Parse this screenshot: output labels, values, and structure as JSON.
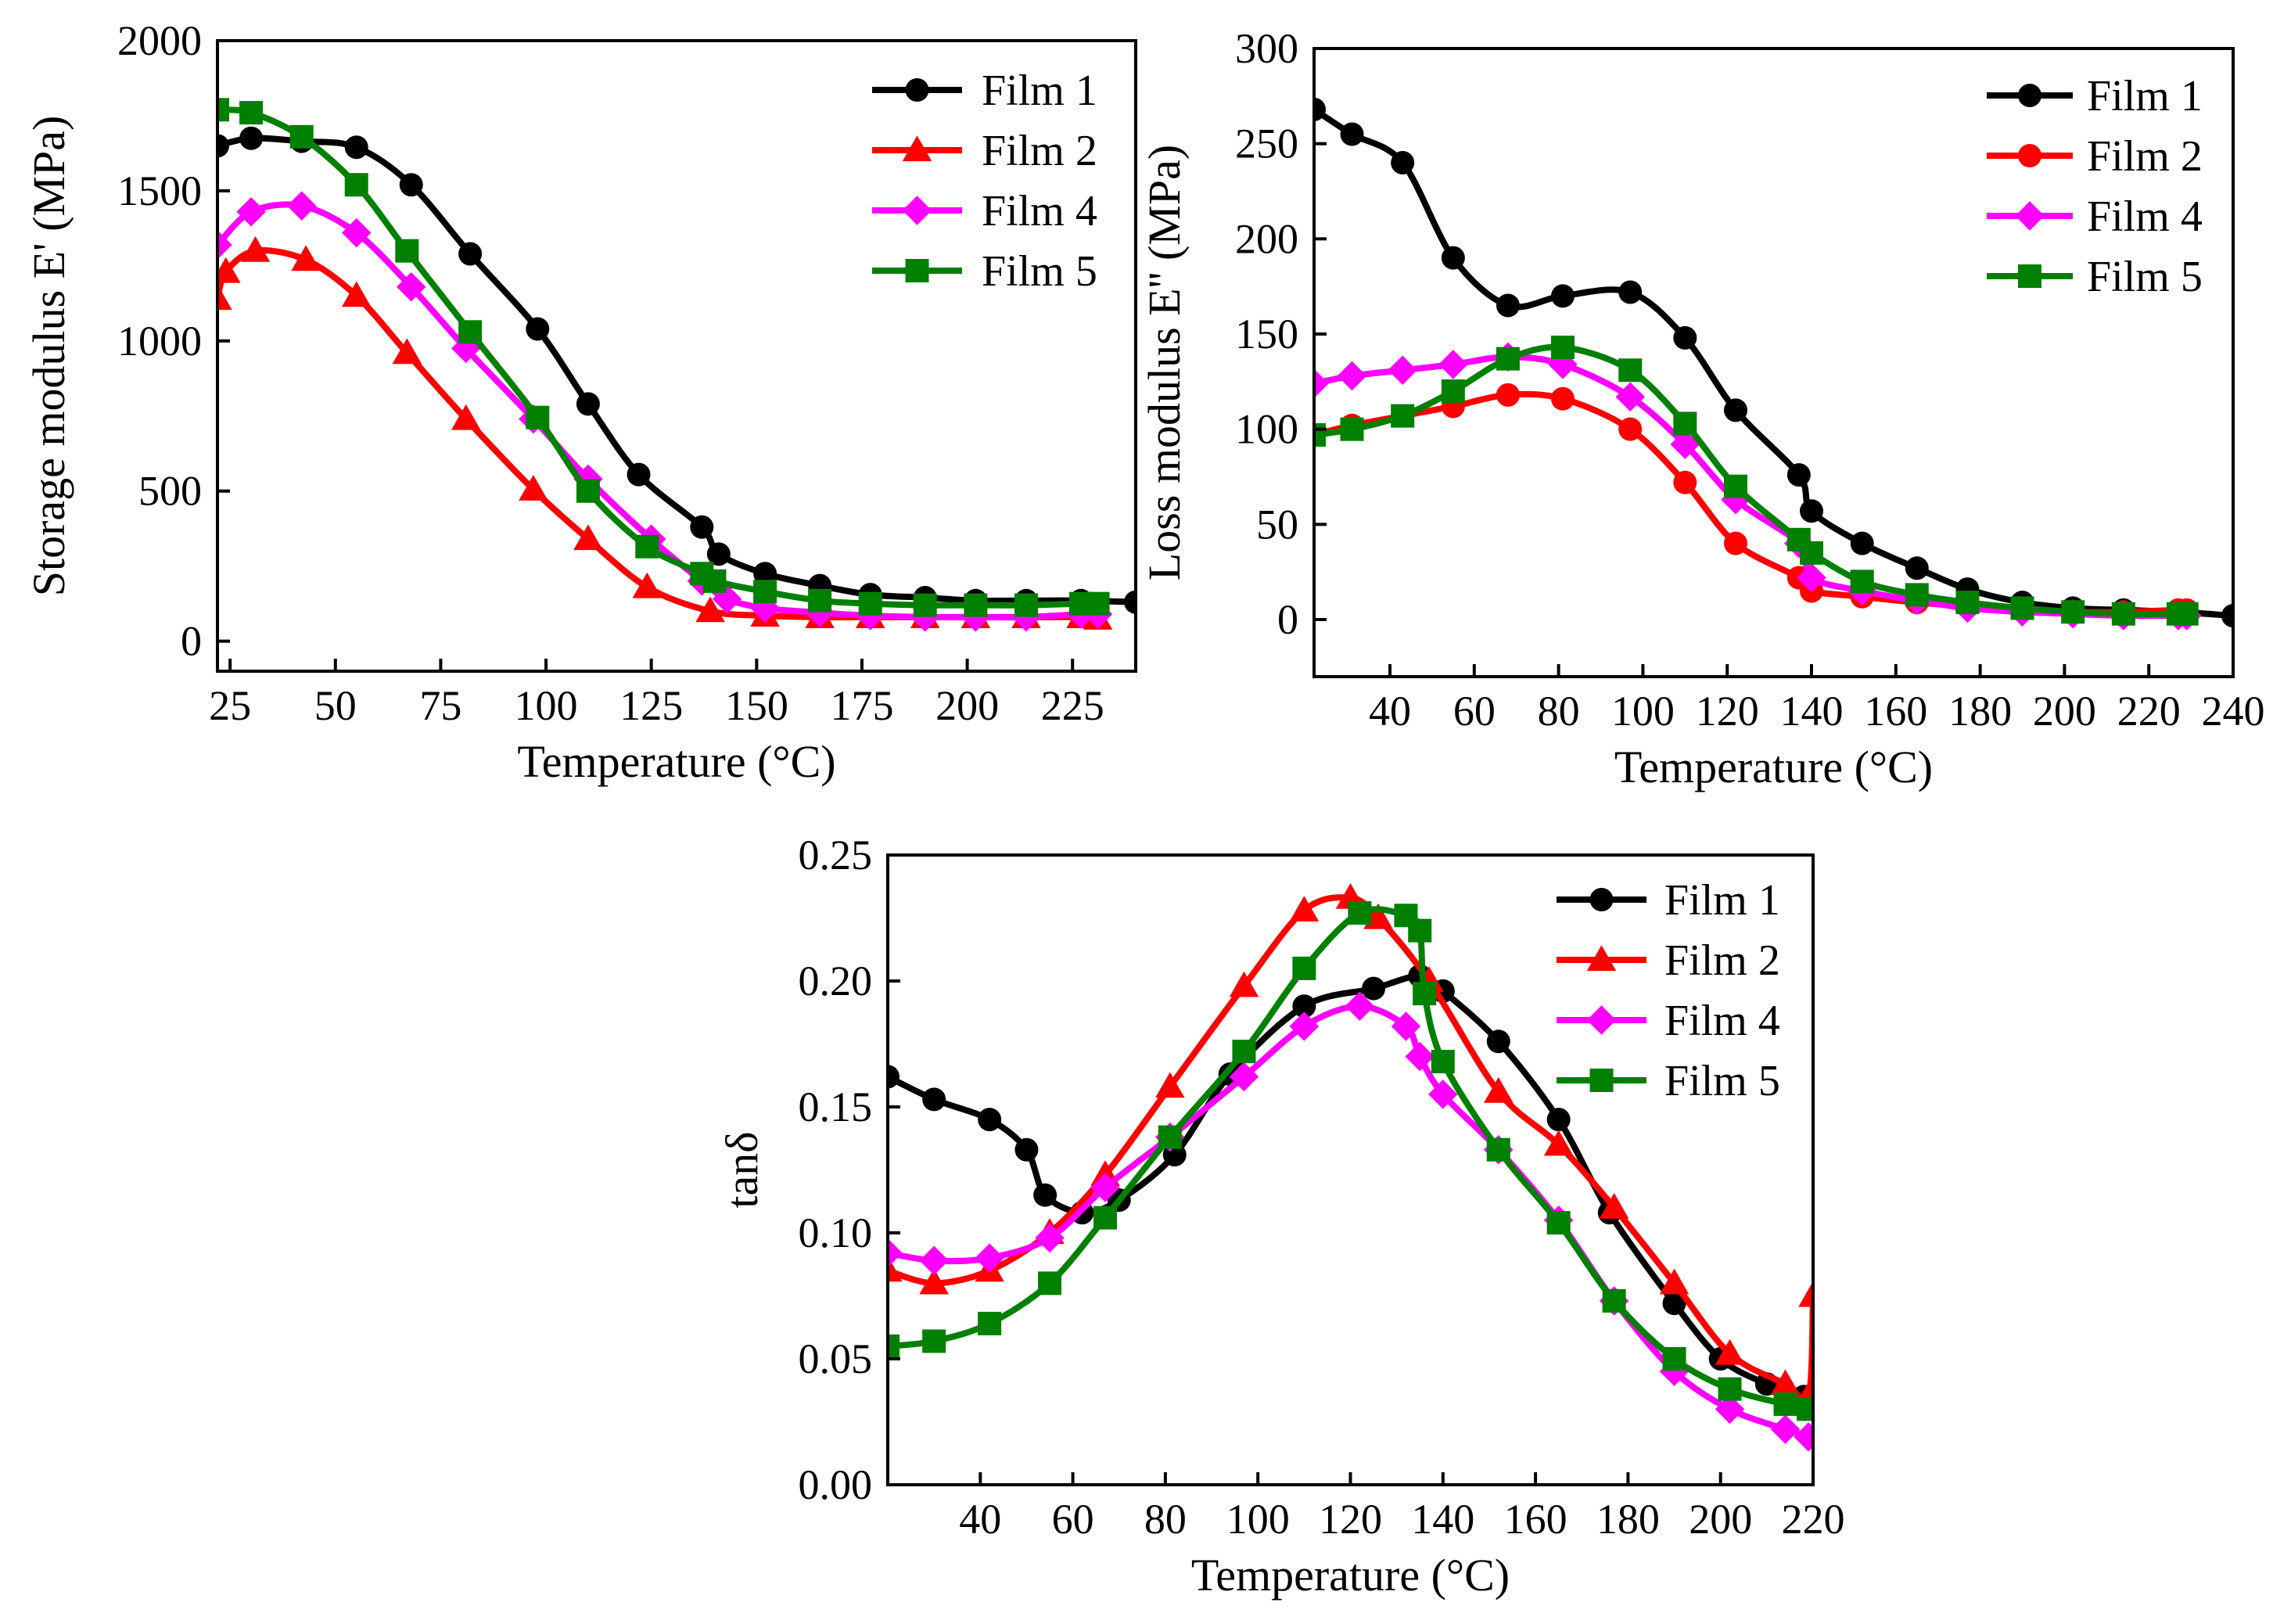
{
  "chart_data": [
    {
      "id": "storage",
      "type": "line",
      "title": "",
      "xlabel": "Temperature (°C)",
      "ylabel": "Storage modulus E' (MPa)",
      "xlim": [
        22,
        240
      ],
      "ylim": [
        -100,
        2000
      ],
      "xticks": [
        25,
        50,
        75,
        100,
        125,
        150,
        175,
        200,
        225
      ],
      "xtick_labels": [
        "25",
        "50",
        "75",
        "100",
        "125",
        "150",
        "175",
        "200",
        "225"
      ],
      "yticks": [
        0,
        500,
        1000,
        1500,
        2000
      ],
      "ytick_labels": [
        "0",
        "500",
        "1000",
        "1500",
        "2000"
      ],
      "legend_position": "top-right",
      "series": [
        {
          "name": "Film 1",
          "color": "#000000",
          "marker": "circle",
          "x": [
            22,
            30,
            42,
            55,
            68,
            82,
            98,
            110,
            122,
            137,
            141,
            152,
            165,
            177,
            190,
            202,
            214,
            227,
            240
          ],
          "y": [
            1650,
            1675,
            1665,
            1645,
            1520,
            1290,
            1040,
            790,
            555,
            380,
            290,
            225,
            185,
            155,
            145,
            135,
            135,
            135,
            130
          ]
        },
        {
          "name": "Film 2",
          "color": "#ff0000",
          "marker": "triangle",
          "x": [
            22,
            24,
            31,
            43,
            55,
            67,
            81,
            97,
            110,
            124,
            139,
            152,
            165,
            177,
            190,
            202,
            214,
            227,
            231
          ],
          "y": [
            1140,
            1230,
            1300,
            1270,
            1150,
            960,
            740,
            505,
            340,
            180,
            100,
            85,
            80,
            80,
            80,
            80,
            80,
            80,
            75
          ]
        },
        {
          "name": "Film 4",
          "color": "#ff00ff",
          "marker": "diamond",
          "x": [
            22,
            30,
            42,
            55,
            68,
            81,
            97,
            110,
            125,
            137,
            143,
            152,
            165,
            177,
            190,
            202,
            214,
            227,
            231
          ],
          "y": [
            1320,
            1430,
            1450,
            1360,
            1180,
            975,
            740,
            540,
            340,
            200,
            140,
            110,
            95,
            85,
            80,
            80,
            80,
            90,
            90
          ]
        },
        {
          "name": "Film 5",
          "color": "#008000",
          "marker": "square",
          "x": [
            22,
            30,
            42,
            55,
            67,
            82,
            98,
            110,
            124,
            137,
            140,
            152,
            165,
            177,
            190,
            202,
            214,
            227,
            231
          ],
          "y": [
            1770,
            1760,
            1680,
            1520,
            1300,
            1030,
            745,
            500,
            315,
            225,
            200,
            165,
            135,
            125,
            120,
            120,
            120,
            125,
            125
          ]
        }
      ]
    },
    {
      "id": "loss",
      "type": "line",
      "title": "",
      "xlabel": "Temperature (°C)",
      "ylabel": "Loss modulus E'' (MPa)",
      "xlim": [
        22,
        240
      ],
      "ylim": [
        -30,
        300
      ],
      "xticks": [
        40,
        60,
        80,
        100,
        120,
        140,
        160,
        180,
        200,
        220,
        240
      ],
      "xtick_labels": [
        "40",
        "60",
        "80",
        "100",
        "120",
        "140",
        "160",
        "180",
        "200",
        "220",
        "240"
      ],
      "yticks": [
        0,
        50,
        100,
        150,
        200,
        250,
        300
      ],
      "ytick_labels": [
        "0",
        "50",
        "100",
        "150",
        "200",
        "250",
        "300"
      ],
      "legend_position": "top-right",
      "series": [
        {
          "name": "Film 1",
          "color": "#000000",
          "marker": "circle",
          "x": [
            22,
            31,
            43,
            55,
            68,
            81,
            97,
            110,
            122,
            137,
            140,
            152,
            165,
            177,
            190,
            202,
            214,
            227,
            240
          ],
          "y": [
            268,
            255,
            240,
            190,
            165,
            170,
            172,
            148,
            110,
            76,
            57,
            40,
            27,
            16,
            9,
            6,
            5,
            4,
            2
          ]
        },
        {
          "name": "Film 2",
          "color": "#ff0000",
          "marker": "circle",
          "x": [
            22,
            31,
            43,
            55,
            68,
            81,
            97,
            110,
            122,
            137,
            140,
            152,
            165,
            177,
            190,
            202,
            214,
            227,
            229
          ],
          "y": [
            97,
            102,
            107,
            112,
            118,
            116,
            100,
            72,
            40,
            22,
            15,
            12,
            9,
            7,
            5,
            4,
            4,
            5,
            5
          ]
        },
        {
          "name": "Film 4",
          "color": "#ff00ff",
          "marker": "diamond",
          "x": [
            22,
            31,
            43,
            55,
            68,
            81,
            97,
            110,
            122,
            137,
            140,
            152,
            165,
            177,
            190,
            202,
            214,
            227,
            229
          ],
          "y": [
            124,
            128,
            131,
            134,
            138,
            134,
            117,
            92,
            63,
            40,
            22,
            15,
            10,
            6,
            4,
            3,
            2,
            2,
            2
          ]
        },
        {
          "name": "Film 5",
          "color": "#008000",
          "marker": "square",
          "x": [
            22,
            31,
            43,
            55,
            68,
            81,
            97,
            110,
            122,
            137,
            140,
            152,
            165,
            177,
            190,
            202,
            214,
            227,
            229
          ],
          "y": [
            97,
            100,
            107,
            120,
            137,
            143,
            131,
            103,
            70,
            42,
            35,
            20,
            13,
            9,
            6,
            4,
            3,
            3,
            3
          ]
        }
      ]
    },
    {
      "id": "tand",
      "type": "line",
      "title": "",
      "xlabel": "Temperature (°C)",
      "ylabel": "tanδ",
      "xlim": [
        20,
        220
      ],
      "ylim": [
        0.0,
        0.25
      ],
      "xticks": [
        40,
        60,
        80,
        100,
        120,
        140,
        160,
        180,
        200,
        220
      ],
      "xtick_labels": [
        "40",
        "60",
        "80",
        "100",
        "120",
        "140",
        "160",
        "180",
        "200",
        "220"
      ],
      "yticks": [
        0.0,
        0.05,
        0.1,
        0.15,
        0.2,
        0.25
      ],
      "ytick_labels": [
        "0.00",
        "0.05",
        "0.10",
        "0.15",
        "0.20",
        "0.25"
      ],
      "legend_position": "top-right",
      "series": [
        {
          "name": "Film 1",
          "color": "#000000",
          "marker": "circle",
          "x": [
            20,
            30,
            42,
            50,
            54,
            62,
            70,
            82,
            94,
            110,
            125,
            135,
            140,
            152,
            165,
            176,
            190,
            200,
            210,
            218
          ],
          "y": [
            0.162,
            0.153,
            0.145,
            0.133,
            0.115,
            0.108,
            0.113,
            0.131,
            0.163,
            0.19,
            0.197,
            0.202,
            0.196,
            0.176,
            0.145,
            0.108,
            0.072,
            0.05,
            0.04,
            0.035
          ]
        },
        {
          "name": "Film 2",
          "color": "#ff0000",
          "marker": "triangle",
          "x": [
            20,
            30,
            42,
            55,
            67,
            81,
            97,
            110,
            120,
            126,
            137,
            152,
            165,
            177,
            190,
            202,
            214,
            219,
            220
          ],
          "y": [
            0.085,
            0.08,
            0.085,
            0.1,
            0.123,
            0.158,
            0.198,
            0.228,
            0.233,
            0.225,
            0.2,
            0.156,
            0.135,
            0.11,
            0.08,
            0.052,
            0.04,
            0.035,
            0.075
          ]
        },
        {
          "name": "Film 4",
          "color": "#ff00ff",
          "marker": "diamond",
          "x": [
            20,
            30,
            42,
            55,
            67,
            81,
            97,
            110,
            122,
            132,
            135,
            140,
            152,
            165,
            177,
            190,
            202,
            214,
            219
          ],
          "y": [
            0.092,
            0.089,
            0.09,
            0.098,
            0.118,
            0.138,
            0.162,
            0.182,
            0.19,
            0.182,
            0.17,
            0.155,
            0.133,
            0.105,
            0.073,
            0.045,
            0.03,
            0.022,
            0.019
          ]
        },
        {
          "name": "Film 5",
          "color": "#008000",
          "marker": "square",
          "x": [
            20,
            30,
            42,
            55,
            67,
            81,
            97,
            110,
            122,
            132,
            135,
            136,
            140,
            152,
            165,
            177,
            190,
            202,
            214,
            219
          ],
          "y": [
            0.055,
            0.057,
            0.064,
            0.08,
            0.106,
            0.138,
            0.172,
            0.205,
            0.227,
            0.226,
            0.22,
            0.195,
            0.168,
            0.133,
            0.104,
            0.073,
            0.05,
            0.038,
            0.032,
            0.03
          ]
        }
      ]
    }
  ]
}
